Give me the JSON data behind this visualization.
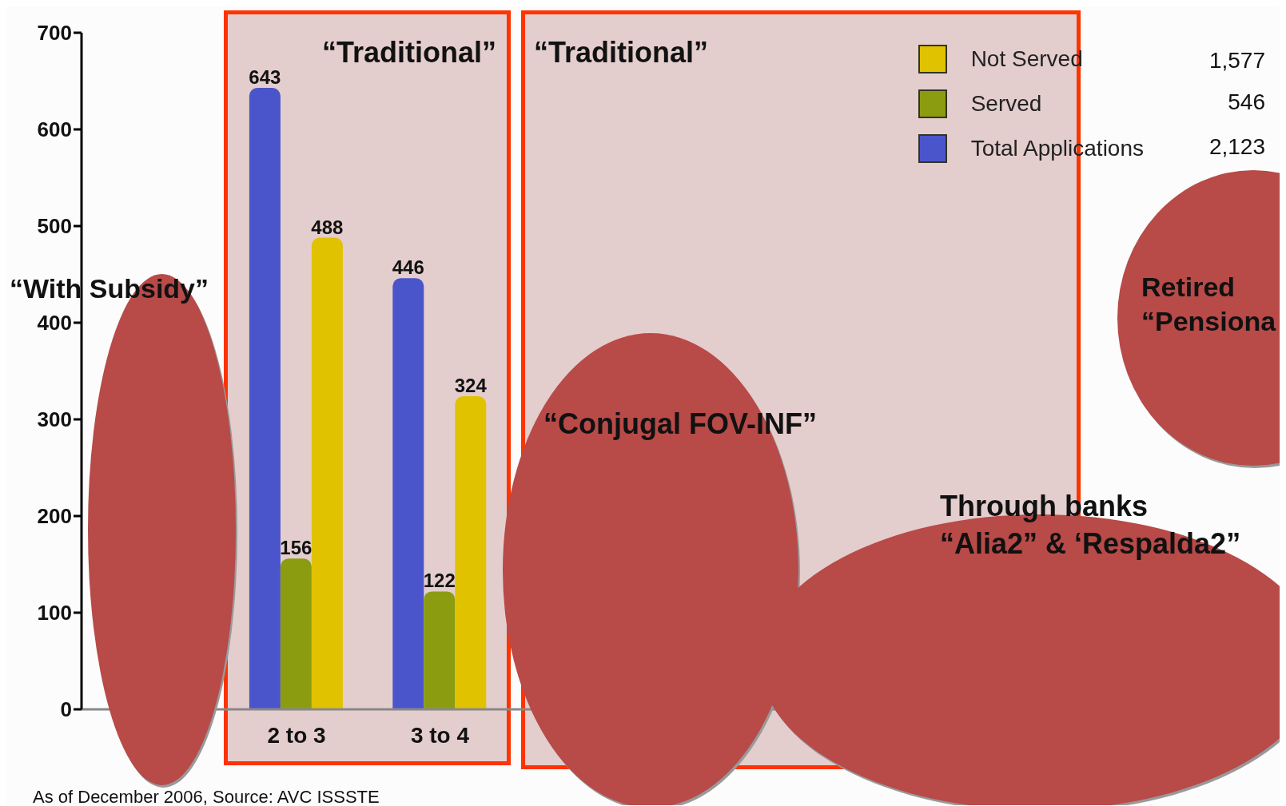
{
  "chart_data": {
    "type": "bar",
    "categories": [
      null,
      "2 to 3",
      "3 to 4",
      null,
      null
    ],
    "series": [
      {
        "name": "Total Applications",
        "color": "#4a55cc",
        "values": [
          null,
          643,
          446,
          null,
          null
        ]
      },
      {
        "name": "Served",
        "color": "#8c9c10",
        "values": [
          null,
          156,
          122,
          null,
          null
        ]
      },
      {
        "name": "Not Served",
        "color": "#e0c200",
        "values": [
          null,
          488,
          324,
          null,
          null
        ]
      }
    ],
    "ylim": [
      0,
      700
    ],
    "yticks": [
      0,
      100,
      200,
      300,
      400,
      500,
      600,
      700
    ],
    "data_labels": true,
    "legend": "top right",
    "grid": false,
    "annotations": [
      "“Traditional”",
      "“Traditional”",
      "“With Subsidy”",
      "“Conjugal FOV-INF”",
      "Through banks",
      "“Alia2” & ‘Respalda2”",
      "Retired “Pensiona",
      "1,577",
      "546",
      "2,123",
      "As of December 2006, Source: AVC ISSSTE"
    ]
  }
}
